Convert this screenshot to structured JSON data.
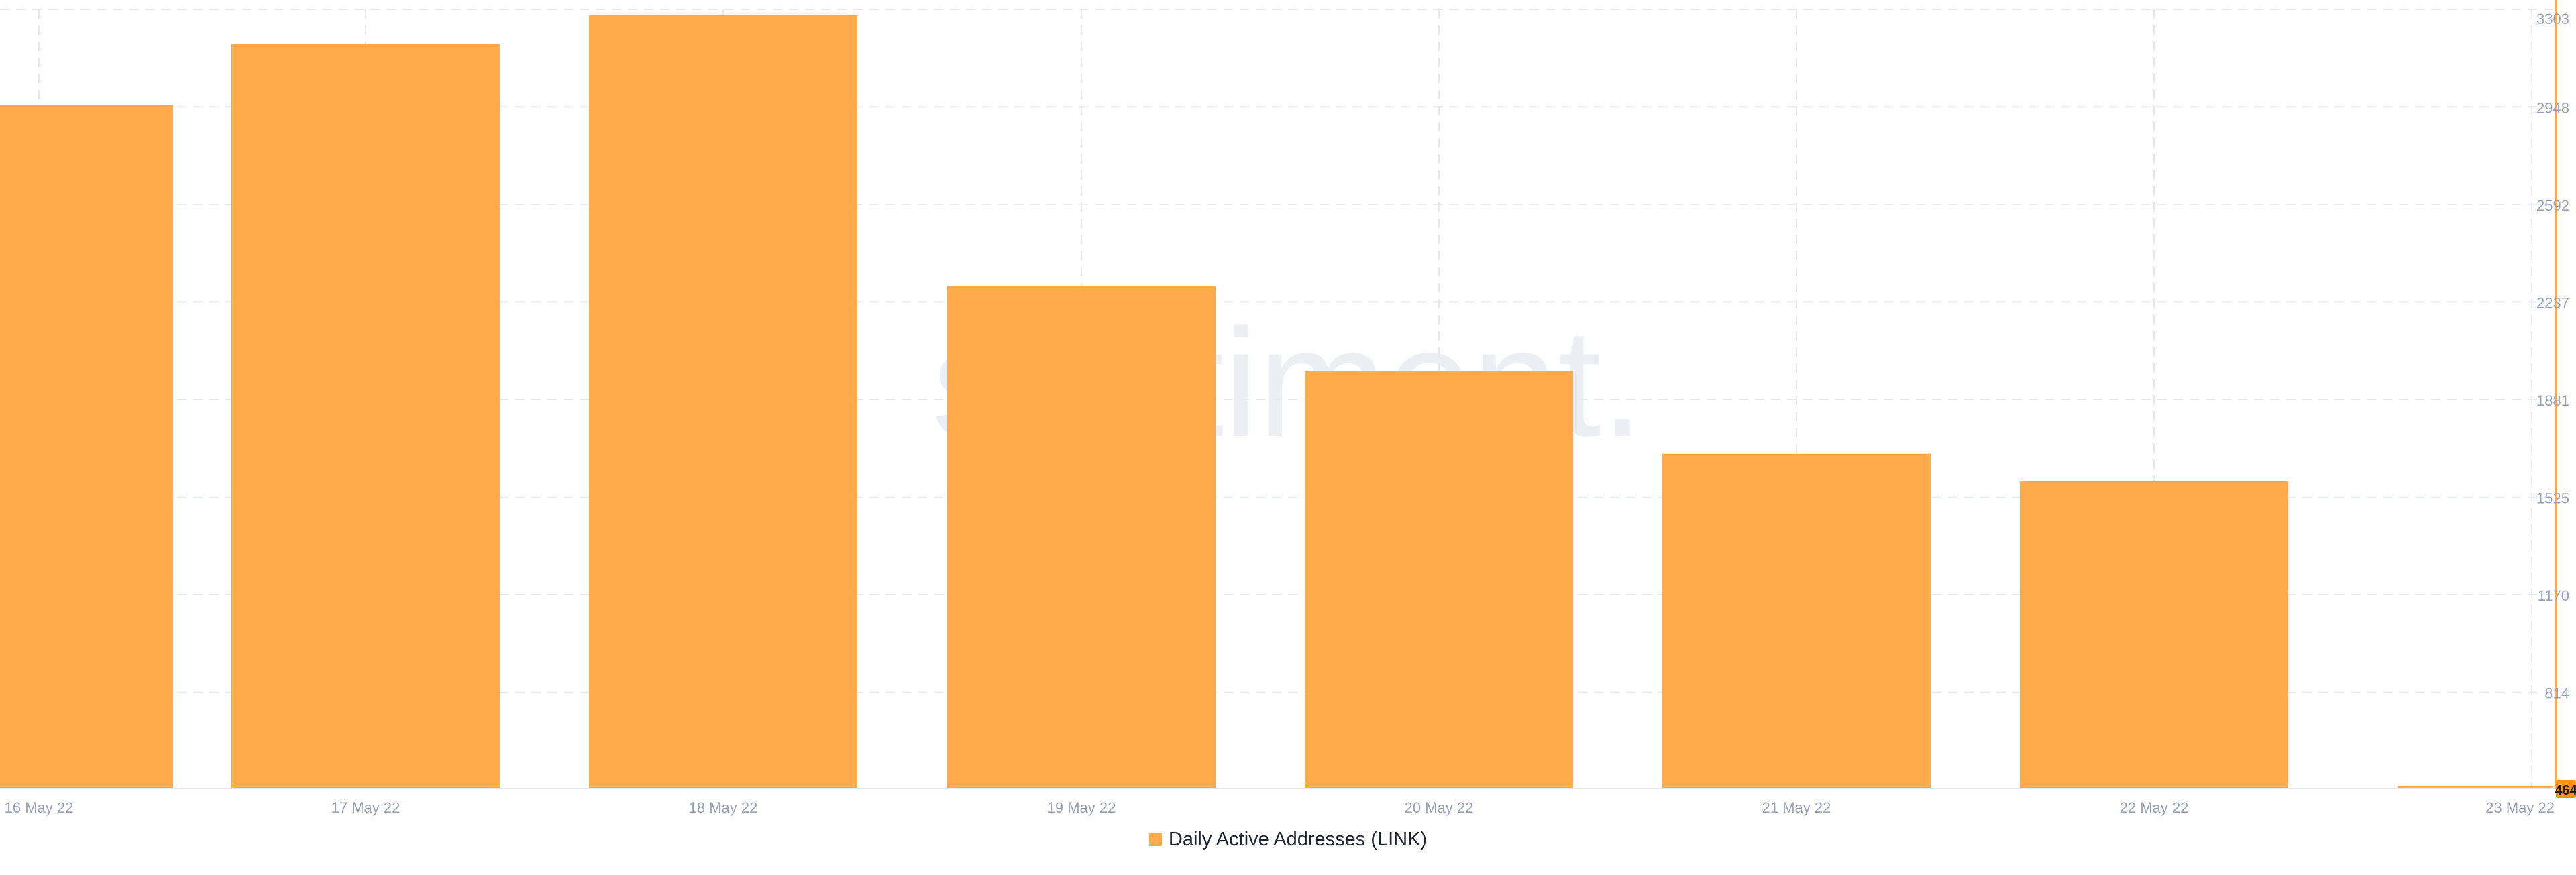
{
  "chart_data": {
    "type": "bar",
    "title": "",
    "xlabel": "",
    "ylabel": "",
    "categories": [
      "16 May 22",
      "17 May 22",
      "18 May 22",
      "19 May 22",
      "20 May 22",
      "21 May 22",
      "22 May 22",
      "23 May 22"
    ],
    "series": [
      {
        "name": "Daily Active Addresses (LINK)",
        "color": "#ffab4c",
        "values": [
          2955,
          3177,
          3281,
          2295,
          1985,
          1684,
          1583,
          464
        ]
      }
    ],
    "ylim": [
      464,
      3303
    ],
    "yticks": [
      "3303",
      "2948",
      "2592",
      "2237",
      "1881",
      "1525",
      "1170",
      "814"
    ],
    "last_value_label": "464",
    "last_value_color": "#f7931a",
    "axis_position": "right",
    "grid": true,
    "legend_position": "bottom-center",
    "watermark": "santiment."
  },
  "legend": {
    "label": "Daily Active Addresses (LINK)"
  }
}
